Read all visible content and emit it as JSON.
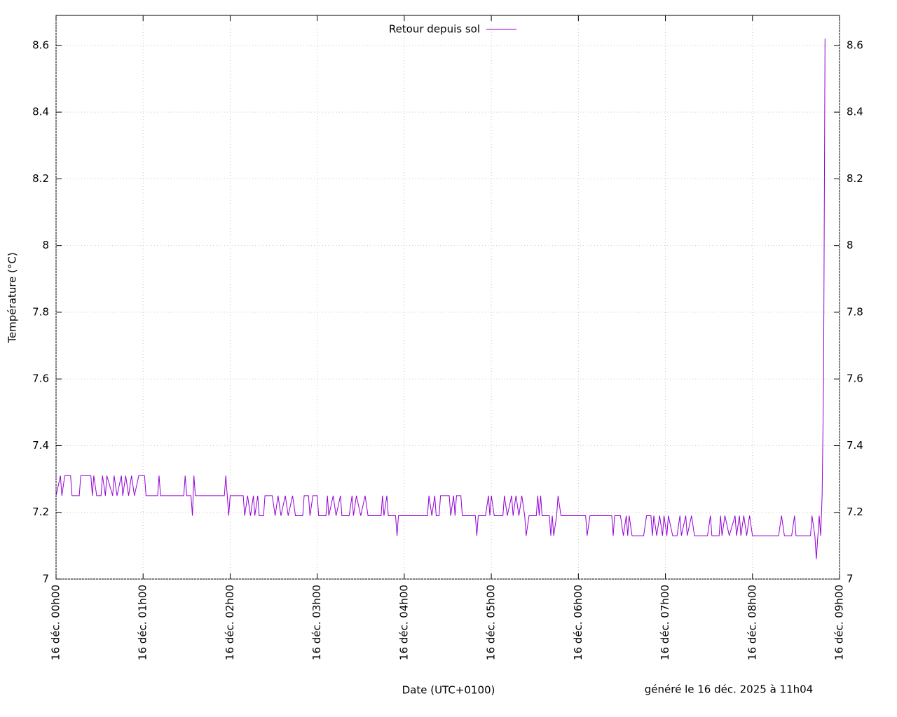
{
  "chart_data": {
    "type": "line",
    "y_label": "Température (°C)",
    "x_label": "Date (UTC+0100)",
    "annotation": "généré le 16 déc. 2025 à 11h04",
    "legend": "top",
    "grid": true,
    "xlim": [
      "16 déc. 00h00",
      "16 déc. 09h00"
    ],
    "xticks": [
      "16 déc. 00h00",
      "16 déc. 01h00",
      "16 déc. 02h00",
      "16 déc. 03h00",
      "16 déc. 04h00",
      "16 déc. 05h00",
      "16 déc. 06h00",
      "16 déc. 07h00",
      "16 déc. 08h00",
      "16 déc. 09h00"
    ],
    "ylim": [
      7,
      8.69
    ],
    "yticks": [
      7,
      7.2,
      7.4,
      7.6,
      7.8,
      8,
      8.2,
      8.4,
      8.6
    ],
    "x": [
      "16 déc. 00h00",
      "16 déc. 00h03",
      "16 déc. 00h04",
      "16 déc. 00h06",
      "16 déc. 00h10",
      "16 déc. 00h11",
      "16 déc. 00h16",
      "16 déc. 00h17",
      "16 déc. 00h24",
      "16 déc. 00h25",
      "16 déc. 00h26",
      "16 déc. 00h28",
      "16 déc. 00h31",
      "16 déc. 00h32",
      "16 déc. 00h34",
      "16 déc. 00h35",
      "16 déc. 00h39",
      "16 déc. 00h40",
      "16 déc. 00h42",
      "16 déc. 00h45",
      "16 déc. 00h46",
      "16 déc. 00h48",
      "16 déc. 00h50",
      "16 déc. 00h52",
      "16 déc. 00h54",
      "16 déc. 00h57",
      "16 déc. 01h01",
      "16 déc. 01h02",
      "16 déc. 01h10",
      "16 déc. 01h11",
      "16 déc. 01h12",
      "16 déc. 01h28",
      "16 déc. 01h29",
      "16 déc. 01h30",
      "16 déc. 01h33",
      "16 déc. 01h34",
      "16 déc. 01h35",
      "16 déc. 01h36",
      "16 déc. 01h56",
      "16 déc. 01h57",
      "16 déc. 01h58",
      "16 déc. 01h59",
      "16 déc. 02h00",
      "16 déc. 02h09",
      "16 déc. 02h10",
      "16 déc. 02h12",
      "16 déc. 02h14",
      "16 déc. 02h16",
      "16 déc. 02h17",
      "16 déc. 02h19",
      "16 déc. 02h20",
      "16 déc. 02h23",
      "16 déc. 02h24",
      "16 déc. 02h29",
      "16 déc. 02h31",
      "16 déc. 02h33",
      "16 déc. 02h35",
      "16 déc. 02h38",
      "16 déc. 02h40",
      "16 déc. 02h43",
      "16 déc. 02h45",
      "16 déc. 02h50",
      "16 déc. 02h51",
      "16 déc. 02h54",
      "16 déc. 02h55",
      "16 déc. 02h57",
      "16 déc. 03h00",
      "16 déc. 03h01",
      "16 déc. 03h06",
      "16 déc. 03h07",
      "16 déc. 03h08",
      "16 déc. 03h11",
      "16 déc. 03h13",
      "16 déc. 03h16",
      "16 déc. 03h17",
      "16 déc. 03h22",
      "16 déc. 03h24",
      "16 déc. 03h25",
      "16 déc. 03h27",
      "16 déc. 03h30",
      "16 déc. 03h33",
      "16 déc. 03h35",
      "16 déc. 03h44",
      "16 déc. 03h45",
      "16 déc. 03h46",
      "16 déc. 03h48",
      "16 déc. 03h49",
      "16 déc. 03h54",
      "16 déc. 03h55",
      "16 déc. 03h56",
      "16 déc. 04h16",
      "16 déc. 04h17",
      "16 déc. 04h19",
      "16 déc. 04h21",
      "16 déc. 04h22",
      "16 déc. 04h24",
      "16 déc. 04h25",
      "16 déc. 04h31",
      "16 déc. 04h32",
      "16 déc. 04h34",
      "16 déc. 04h35",
      "16 déc. 04h36",
      "16 déc. 04h39",
      "16 déc. 04h40",
      "16 déc. 04h49",
      "16 déc. 04h50",
      "16 déc. 04h51",
      "16 déc. 04h56",
      "16 déc. 04h58",
      "16 déc. 04h59",
      "16 déc. 05h00",
      "16 déc. 05h02",
      "16 déc. 05h08",
      "16 déc. 05h09",
      "16 déc. 05h11",
      "16 déc. 05h14",
      "16 déc. 05h15",
      "16 déc. 05h17",
      "16 déc. 05h19",
      "16 déc. 05h21",
      "16 déc. 05h23",
      "16 déc. 05h24",
      "16 déc. 05h26",
      "16 déc. 05h31",
      "16 déc. 05h32",
      "16 déc. 05h33",
      "16 déc. 05h34",
      "16 déc. 05h35",
      "16 déc. 05h40",
      "16 déc. 05h41",
      "16 déc. 05h42",
      "16 déc. 05h43",
      "16 déc. 05h45",
      "16 déc. 05h46",
      "16 déc. 05h48",
      "16 déc. 06h05",
      "16 déc. 06h06",
      "16 déc. 06h08",
      "16 déc. 06h23",
      "16 déc. 06h24",
      "16 déc. 06h25",
      "16 déc. 06h29",
      "16 déc. 06h31",
      "16 déc. 06h33",
      "16 déc. 06h34",
      "16 déc. 06h35",
      "16 déc. 06h37",
      "16 déc. 06h45",
      "16 déc. 06h47",
      "16 déc. 06h50",
      "16 déc. 06h51",
      "16 déc. 06h52",
      "16 déc. 06h54",
      "16 déc. 06h56",
      "16 déc. 06h58",
      "16 déc. 06h59",
      "16 déc. 07h01",
      "16 déc. 07h02",
      "16 déc. 07h05",
      "16 déc. 07h08",
      "16 déc. 07h10",
      "16 déc. 07h11",
      "16 déc. 07h14",
      "16 déc. 07h15",
      "16 déc. 07h18",
      "16 déc. 07h20",
      "16 déc. 07h29",
      "16 déc. 07h31",
      "16 déc. 07h32",
      "16 déc. 07h37",
      "16 déc. 07h38",
      "16 déc. 07h39",
      "16 déc. 07h41",
      "16 déc. 07h44",
      "16 déc. 07h48",
      "16 déc. 07h49",
      "16 déc. 07h51",
      "16 déc. 07h52",
      "16 déc. 07h54",
      "16 déc. 07h56",
      "16 déc. 07h58",
      "16 déc. 08h00",
      "16 déc. 08h18",
      "16 déc. 08h20",
      "16 déc. 08h22",
      "16 déc. 08h27",
      "16 déc. 08h29",
      "16 déc. 08h30",
      "16 déc. 08h40",
      "16 déc. 08h41",
      "16 déc. 08h43",
      "16 déc. 08h44",
      "16 déc. 08h46",
      "16 déc. 08h47",
      "16 déc. 08h48",
      "16 déc. 08h49",
      "16 déc. 08h50"
    ],
    "series": [
      {
        "name": "Retour depuis sol",
        "color": "#9400d3",
        "values": [
          7.25,
          7.31,
          7.25,
          7.31,
          7.31,
          7.25,
          7.25,
          7.31,
          7.31,
          7.25,
          7.31,
          7.25,
          7.25,
          7.31,
          7.25,
          7.31,
          7.25,
          7.31,
          7.25,
          7.31,
          7.25,
          7.31,
          7.25,
          7.31,
          7.25,
          7.31,
          7.31,
          7.25,
          7.25,
          7.31,
          7.25,
          7.25,
          7.31,
          7.25,
          7.25,
          7.19,
          7.31,
          7.25,
          7.25,
          7.31,
          7.25,
          7.19,
          7.25,
          7.25,
          7.19,
          7.25,
          7.19,
          7.25,
          7.19,
          7.25,
          7.19,
          7.19,
          7.25,
          7.25,
          7.19,
          7.25,
          7.19,
          7.25,
          7.19,
          7.25,
          7.19,
          7.19,
          7.25,
          7.25,
          7.19,
          7.25,
          7.25,
          7.19,
          7.19,
          7.25,
          7.19,
          7.25,
          7.19,
          7.25,
          7.19,
          7.19,
          7.25,
          7.19,
          7.25,
          7.19,
          7.25,
          7.19,
          7.19,
          7.25,
          7.19,
          7.25,
          7.19,
          7.19,
          7.13,
          7.19,
          7.19,
          7.25,
          7.19,
          7.25,
          7.19,
          7.19,
          7.25,
          7.25,
          7.19,
          7.25,
          7.19,
          7.25,
          7.25,
          7.19,
          7.19,
          7.13,
          7.19,
          7.19,
          7.25,
          7.19,
          7.25,
          7.19,
          7.19,
          7.25,
          7.19,
          7.25,
          7.19,
          7.25,
          7.19,
          7.25,
          7.19,
          7.13,
          7.19,
          7.19,
          7.25,
          7.19,
          7.25,
          7.19,
          7.19,
          7.13,
          7.19,
          7.13,
          7.19,
          7.25,
          7.19,
          7.19,
          7.13,
          7.19,
          7.19,
          7.13,
          7.19,
          7.19,
          7.13,
          7.19,
          7.13,
          7.19,
          7.13,
          7.13,
          7.19,
          7.19,
          7.13,
          7.19,
          7.13,
          7.19,
          7.13,
          7.19,
          7.13,
          7.19,
          7.13,
          7.13,
          7.19,
          7.13,
          7.19,
          7.13,
          7.19,
          7.13,
          7.13,
          7.19,
          7.13,
          7.13,
          7.19,
          7.13,
          7.19,
          7.13,
          7.19,
          7.13,
          7.19,
          7.13,
          7.19,
          7.13,
          7.19,
          7.13,
          7.13,
          7.19,
          7.13,
          7.13,
          7.19,
          7.13,
          7.13,
          7.19,
          7.13,
          7.06,
          7.19,
          7.13,
          7.25,
          7.6,
          8.62
        ]
      }
    ]
  }
}
